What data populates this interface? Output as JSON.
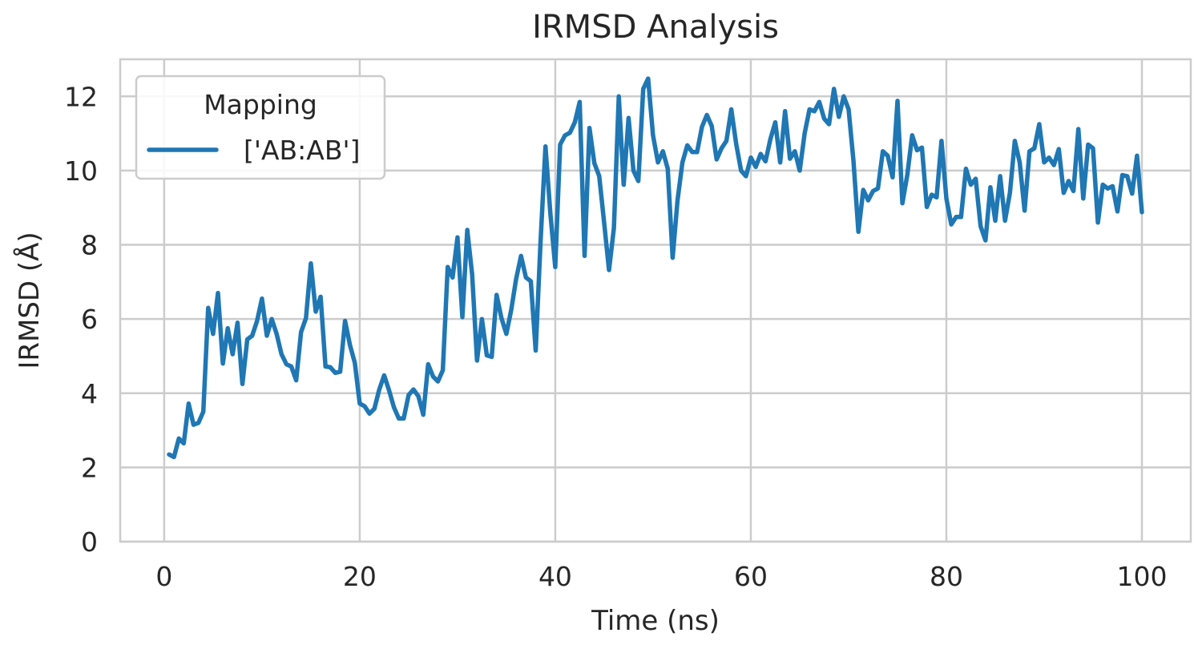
{
  "chart_data": {
    "type": "line",
    "title": "IRMSD Analysis",
    "xlabel": "Time (ns)",
    "ylabel": "IRMSD (Å)",
    "xlim": [
      -4.5,
      105
    ],
    "ylim": [
      0,
      13
    ],
    "xticks": [
      0,
      20,
      40,
      60,
      80,
      100
    ],
    "yticks": [
      0,
      2,
      4,
      6,
      8,
      10,
      12
    ],
    "grid": true,
    "legend": {
      "title": "Mapping",
      "placement": "top-left"
    },
    "colors": {
      "series": "#1f77b4",
      "grid": "#cccccc",
      "text": "#262626"
    },
    "series": [
      {
        "name": "['AB:AB']",
        "x": [
          0.5,
          1.0,
          1.5,
          2.0,
          2.5,
          3.0,
          3.5,
          4.0,
          4.5,
          5.0,
          5.5,
          6.0,
          6.5,
          7.0,
          7.5,
          8.0,
          8.5,
          9.0,
          9.5,
          10.0,
          10.5,
          11.0,
          11.5,
          12.0,
          12.5,
          13.0,
          13.5,
          14.0,
          14.5,
          15.0,
          15.5,
          16.0,
          16.5,
          17.0,
          17.5,
          18.0,
          18.5,
          19.0,
          19.5,
          20.0,
          20.5,
          21.0,
          21.5,
          22.0,
          22.5,
          23.0,
          23.5,
          24.0,
          24.5,
          25.0,
          25.5,
          26.0,
          26.5,
          27.0,
          27.5,
          28.0,
          28.5,
          29.0,
          29.5,
          30.0,
          30.5,
          31.0,
          31.5,
          32.0,
          32.5,
          33.0,
          33.5,
          34.0,
          34.5,
          35.0,
          35.5,
          36.0,
          36.5,
          37.0,
          37.5,
          38.0,
          38.5,
          39.0,
          39.5,
          40.0,
          40.5,
          41.0,
          41.5,
          42.0,
          42.5,
          43.0,
          43.5,
          44.0,
          44.5,
          45.0,
          45.5,
          46.0,
          46.5,
          47.0,
          47.5,
          48.0,
          48.5,
          49.0,
          49.5,
          50.0,
          50.5,
          51.0,
          51.5,
          52.0,
          52.5,
          53.0,
          53.5,
          54.0,
          54.5,
          55.0,
          55.5,
          56.0,
          56.5,
          57.0,
          57.5,
          58.0,
          58.5,
          59.0,
          59.5,
          60.0,
          60.5,
          61.0,
          61.5,
          62.0,
          62.5,
          63.0,
          63.5,
          64.0,
          64.5,
          65.0,
          65.5,
          66.0,
          66.5,
          67.0,
          67.5,
          68.0,
          68.5,
          69.0,
          69.5,
          70.0,
          70.5,
          71.0,
          71.5,
          72.0,
          72.5,
          73.0,
          73.5,
          74.0,
          74.5,
          75.0,
          75.5,
          76.0,
          76.5,
          77.0,
          77.5,
          78.0,
          78.5,
          79.0,
          79.5,
          80.0,
          80.5,
          81.0,
          81.5,
          82.0,
          82.5,
          83.0,
          83.5,
          84.0,
          84.5,
          85.0,
          85.5,
          86.0,
          86.5,
          87.0,
          87.5,
          88.0,
          88.5,
          89.0,
          89.5,
          90.0,
          90.5,
          91.0,
          91.5,
          92.0,
          92.5,
          93.0,
          93.5,
          94.0,
          94.5,
          95.0,
          95.5,
          96.0,
          96.5,
          97.0,
          97.5,
          98.0,
          98.5,
          99.0,
          99.5,
          100.0
        ],
        "y": [
          2.35,
          2.28,
          2.78,
          2.65,
          3.72,
          3.15,
          3.2,
          3.5,
          6.3,
          5.6,
          6.7,
          4.8,
          5.75,
          5.05,
          5.9,
          4.25,
          5.45,
          5.55,
          5.95,
          6.55,
          5.55,
          6.0,
          5.6,
          5.05,
          4.78,
          4.72,
          4.35,
          5.65,
          6.02,
          7.5,
          6.2,
          6.6,
          4.72,
          4.7,
          4.55,
          4.58,
          5.95,
          5.3,
          4.82,
          3.72,
          3.65,
          3.45,
          3.58,
          4.1,
          4.48,
          4.08,
          3.62,
          3.32,
          3.32,
          3.95,
          4.1,
          3.92,
          3.42,
          4.78,
          4.45,
          4.32,
          4.62,
          7.4,
          7.12,
          8.2,
          6.05,
          8.4,
          7.2,
          4.88,
          6.0,
          5.02,
          4.98,
          6.65,
          6.02,
          5.6,
          6.25,
          7.08,
          7.7,
          7.12,
          7.02,
          5.15,
          8.1,
          10.65,
          8.85,
          7.4,
          10.7,
          10.95,
          11.02,
          11.3,
          11.85,
          7.7,
          11.15,
          10.2,
          9.85,
          8.6,
          7.32,
          8.45,
          12.0,
          9.62,
          11.42,
          10.0,
          9.72,
          12.2,
          12.48,
          10.95,
          10.22,
          10.52,
          10.05,
          7.65,
          9.2,
          10.22,
          10.68,
          10.5,
          10.5,
          11.18,
          11.5,
          11.2,
          10.3,
          10.6,
          10.8,
          11.65,
          10.72,
          10.0,
          9.85,
          10.35,
          10.1,
          10.45,
          10.25,
          10.85,
          11.3,
          10.22,
          11.6,
          10.32,
          10.52,
          10.0,
          11.0,
          11.65,
          11.6,
          11.85,
          11.4,
          11.25,
          12.2,
          11.45,
          12.0,
          11.65,
          10.25,
          8.35,
          9.48,
          9.2,
          9.45,
          9.52,
          10.52,
          10.4,
          9.82,
          11.88,
          9.12,
          9.88,
          10.95,
          10.55,
          10.62,
          9.02,
          9.35,
          9.28,
          10.8,
          9.25,
          8.55,
          8.75,
          8.75,
          10.05,
          9.62,
          9.78,
          8.5,
          8.12,
          9.55,
          8.65,
          9.85,
          8.65,
          9.4,
          10.8,
          10.22,
          8.92,
          10.52,
          10.6,
          11.25,
          10.22,
          10.35,
          10.15,
          10.58,
          9.4,
          9.72,
          9.45,
          11.12,
          9.25,
          10.7,
          10.6,
          8.6,
          9.62,
          9.52,
          9.58,
          8.9,
          9.88,
          9.85,
          9.38,
          10.4,
          8.88
        ]
      }
    ]
  }
}
